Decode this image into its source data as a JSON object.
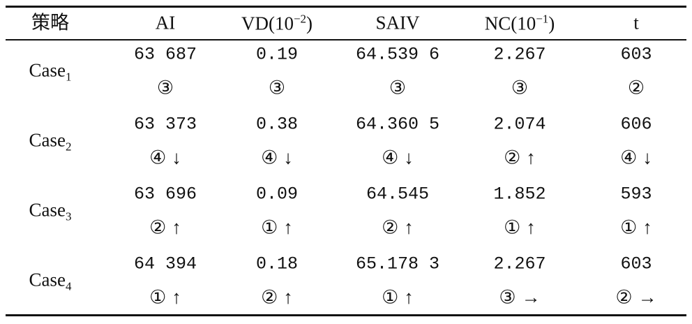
{
  "table": {
    "header": [
      {
        "text": "策略"
      },
      {
        "text": "AI"
      },
      {
        "text": "VD(10",
        "sup": "−2",
        "close": ")"
      },
      {
        "text": "SAIV"
      },
      {
        "text": "NC(10",
        "sup": "−1",
        "close": ")"
      },
      {
        "text": "t"
      }
    ],
    "rows": [
      {
        "label": "Case",
        "sub": "1",
        "values": [
          "63 687",
          "0.19",
          "64.539 6",
          "2.267",
          "603"
        ],
        "ranks": [
          "③",
          "③",
          "③",
          "③",
          "②"
        ]
      },
      {
        "label": "Case",
        "sub": "2",
        "values": [
          "63 373",
          "0.38",
          "64.360 5",
          "2.074",
          "606"
        ],
        "ranks": [
          "④",
          "④",
          "④",
          "②",
          "④"
        ],
        "trends": [
          "↓",
          "↓",
          "↓",
          "↑",
          "↓"
        ]
      },
      {
        "label": "Case",
        "sub": "3",
        "values": [
          "63 696",
          "0.09",
          "64.545",
          "1.852",
          "593"
        ],
        "ranks": [
          "②",
          "①",
          "②",
          "①",
          "①"
        ],
        "trends": [
          "↑",
          "↑",
          "↑",
          "↑",
          "↑"
        ]
      },
      {
        "label": "Case",
        "sub": "4",
        "values": [
          "64 394",
          "0.18",
          "65.178 3",
          "2.267",
          "603"
        ],
        "ranks": [
          "①",
          "②",
          "①",
          "③",
          "②"
        ],
        "trends": [
          "↑",
          "↑",
          "↑",
          "→",
          "→"
        ]
      }
    ]
  }
}
